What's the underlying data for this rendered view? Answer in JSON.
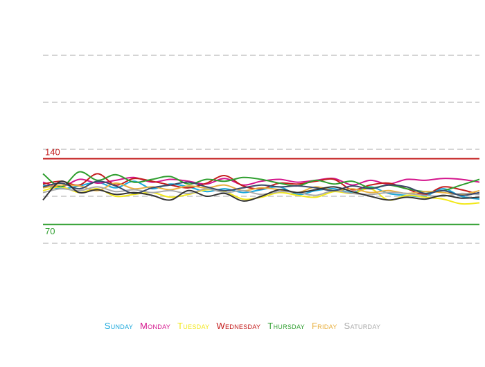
{
  "chart_data": {
    "type": "line",
    "title": "",
    "xlabel": "",
    "ylabel": "",
    "ylim": [
      0,
      300
    ],
    "grid": true,
    "legend_placement": "bottom",
    "reference_lines": [
      {
        "label": "140",
        "value": 140,
        "color": "#c41e1e"
      },
      {
        "label": "70",
        "value": 70,
        "color": "#2e9e2e"
      }
    ],
    "gridlines": [
      50,
      100,
      150,
      200,
      250
    ],
    "x": [
      0,
      1,
      2,
      3,
      4,
      5,
      6,
      7,
      8,
      9,
      10,
      11,
      12,
      13,
      14,
      15,
      16,
      17,
      18,
      19,
      20,
      21,
      22,
      23,
      24
    ],
    "series": [
      {
        "name": "Sunday",
        "color": "#1aa8dc",
        "values": [
          112,
          108,
          111,
          115,
          109,
          116,
          108,
          113,
          110,
          105,
          108,
          104,
          107,
          110,
          102,
          106,
          108,
          104,
          110,
          103,
          101,
          100,
          108,
          100,
          97
        ]
      },
      {
        "name": "Monday",
        "color": "#d4148c",
        "values": [
          115,
          110,
          118,
          114,
          117,
          120,
          115,
          118,
          116,
          113,
          119,
          112,
          116,
          118,
          115,
          117,
          119,
          112,
          117,
          113,
          118,
          117,
          119,
          118,
          115
        ]
      },
      {
        "name": "Tuesday",
        "color": "#f2e81a",
        "values": [
          106,
          110,
          104,
          108,
          100,
          102,
          104,
          99,
          102,
          107,
          105,
          97,
          99,
          104,
          101,
          99,
          105,
          103,
          108,
          96,
          101,
          99,
          97,
          92,
          93
        ]
      },
      {
        "name": "Wednesday",
        "color": "#c41e1e",
        "values": [
          113,
          116,
          112,
          124,
          112,
          119,
          116,
          112,
          109,
          114,
          122,
          111,
          108,
          114,
          113,
          116,
          118,
          107,
          112,
          114,
          108,
          102,
          110,
          107,
          102
        ]
      },
      {
        "name": "Thursday",
        "color": "#2e9e2e",
        "values": [
          124,
          110,
          126,
          117,
          123,
          115,
          118,
          121,
          113,
          118,
          116,
          120,
          118,
          114,
          111,
          117,
          113,
          116,
          109,
          112,
          108,
          105,
          106,
          112,
          118
        ]
      },
      {
        "name": "Friday",
        "color": "#e8b040",
        "values": [
          109,
          112,
          111,
          106,
          114,
          108,
          110,
          107,
          111,
          109,
          112,
          106,
          109,
          107,
          104,
          110,
          106,
          108,
          104,
          106,
          103,
          105,
          104,
          102,
          106
        ]
      },
      {
        "name": "Saturday",
        "color": "#aaaaaa",
        "values": [
          104,
          108,
          106,
          110,
          105,
          107,
          104,
          106,
          103,
          108,
          104,
          106,
          102,
          105,
          104,
          101,
          106,
          103,
          102,
          104,
          103,
          101,
          100,
          103,
          102
        ]
      },
      {
        "name": "",
        "color": "#3a4a6a",
        "values": [
          110,
          114,
          108,
          116,
          111,
          103,
          109,
          112,
          115,
          110,
          106,
          109,
          112,
          110,
          111,
          109,
          106,
          111,
          108,
          112,
          110,
          103,
          106,
          101,
          104
        ]
      },
      {
        "name": "",
        "color": "#333333",
        "values": [
          96,
          116,
          104,
          107,
          102,
          104,
          101,
          96,
          106,
          100,
          103,
          95,
          100,
          107,
          104,
          107,
          110,
          105,
          100,
          96,
          99,
          97,
          101,
          98,
          99
        ]
      }
    ]
  }
}
